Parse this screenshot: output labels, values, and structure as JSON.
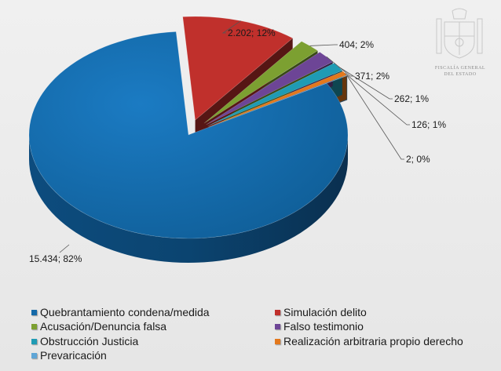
{
  "colors": {
    "background": "#ececec",
    "label_text": "#1a1a1a",
    "leader_line": "#555555"
  },
  "emblem": {
    "icon": "coat-of-arms-icon",
    "line1": "FISCALÍA GENERAL",
    "line2": "DEL ESTADO"
  },
  "chart_data": {
    "type": "pie",
    "style": "3d-exploded",
    "title": "",
    "slices": [
      {
        "name": "Quebrantamiento condena/medida",
        "value": 15434,
        "percent": 82,
        "label": "15.434; 82%",
        "color": "#1469a8"
      },
      {
        "name": "Simulación delito",
        "value": 2202,
        "percent": 12,
        "label": "2.202; 12%",
        "color": "#c0302c"
      },
      {
        "name": "Acusación/Denuncia falsa",
        "value": 404,
        "percent": 2,
        "label": "404; 2%",
        "color": "#7ca031"
      },
      {
        "name": "Falso testimonio",
        "value": 371,
        "percent": 2,
        "label": "371; 2%",
        "color": "#6d4596"
      },
      {
        "name": "Obstrucción Justicia",
        "value": 262,
        "percent": 1,
        "label": "262; 1%",
        "color": "#1f9bb4"
      },
      {
        "name": "Realización arbitraria propio derecho",
        "value": 126,
        "percent": 1,
        "label": "126; 1%",
        "color": "#e3781c"
      },
      {
        "name": "Prevaricación",
        "value": 2,
        "percent": 0,
        "label": "2; 0%",
        "color": "#5fa5d6"
      }
    ],
    "legend_position": "bottom"
  }
}
